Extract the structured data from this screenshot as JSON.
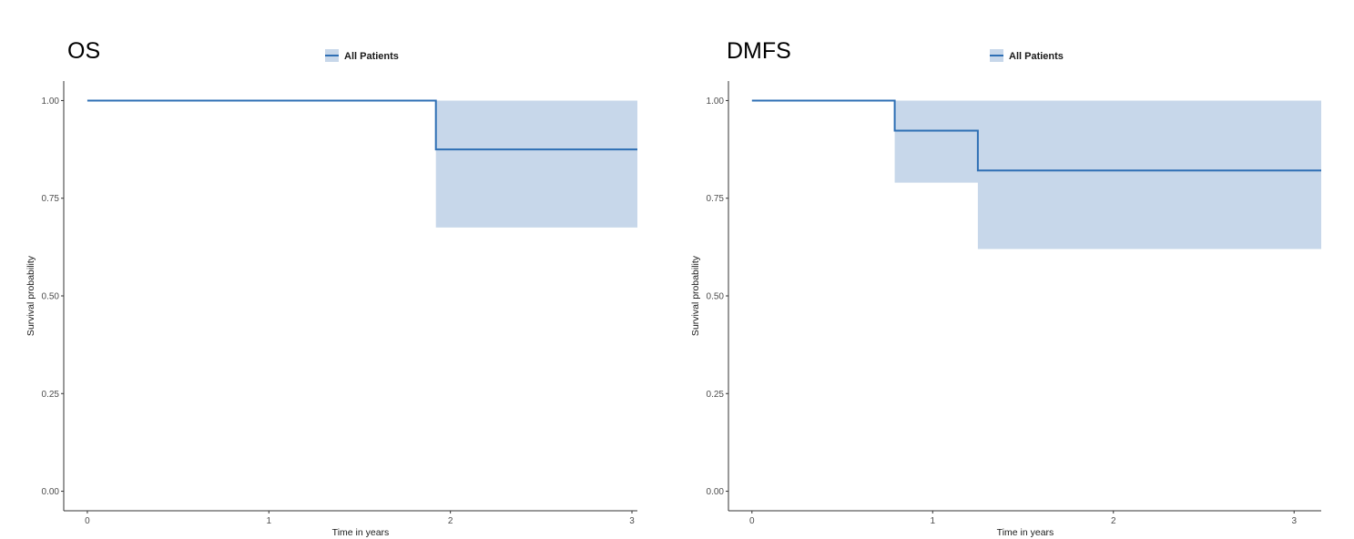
{
  "chart_data": [
    {
      "type": "line",
      "title": "OS",
      "xlabel": "Time in years",
      "ylabel": "Survival probability",
      "xlim": [
        -0.13,
        3.03
      ],
      "ylim": [
        -0.05,
        1.05
      ],
      "x_ticks": [
        0,
        1,
        2,
        3
      ],
      "y_ticks": [
        "0.00",
        "0.25",
        "0.50",
        "0.75",
        "1.00"
      ],
      "grid": false,
      "legend_position": "top",
      "series": [
        {
          "name": "All Patients",
          "color": "#2e6fb4",
          "ci_color": "#c7d7ea",
          "step_x": [
            0,
            1.92,
            1.92,
            3.03
          ],
          "survival": [
            1.0,
            1.0,
            0.875,
            0.875
          ],
          "ci_lower": [
            1.0,
            1.0,
            0.675,
            0.675
          ],
          "ci_upper": [
            1.0,
            1.0,
            1.0,
            1.0
          ]
        }
      ]
    },
    {
      "type": "line",
      "title": "DMFS",
      "xlabel": "Time in years",
      "ylabel": "Survival probability",
      "xlim": [
        -0.13,
        3.15
      ],
      "ylim": [
        -0.05,
        1.05
      ],
      "x_ticks": [
        0,
        1,
        2,
        3
      ],
      "y_ticks": [
        "0.00",
        "0.25",
        "0.50",
        "0.75",
        "1.00"
      ],
      "grid": false,
      "legend_position": "top",
      "series": [
        {
          "name": "All Patients",
          "color": "#2e6fb4",
          "ci_color": "#c7d7ea",
          "step_x": [
            0,
            0.79,
            0.79,
            1.25,
            1.25,
            3.15
          ],
          "survival": [
            1.0,
            1.0,
            0.923,
            0.923,
            0.821,
            0.821
          ],
          "ci_lower": [
            1.0,
            1.0,
            0.79,
            0.79,
            0.62,
            0.62
          ],
          "ci_upper": [
            1.0,
            1.0,
            1.0,
            1.0,
            1.0,
            1.0
          ]
        }
      ]
    }
  ]
}
